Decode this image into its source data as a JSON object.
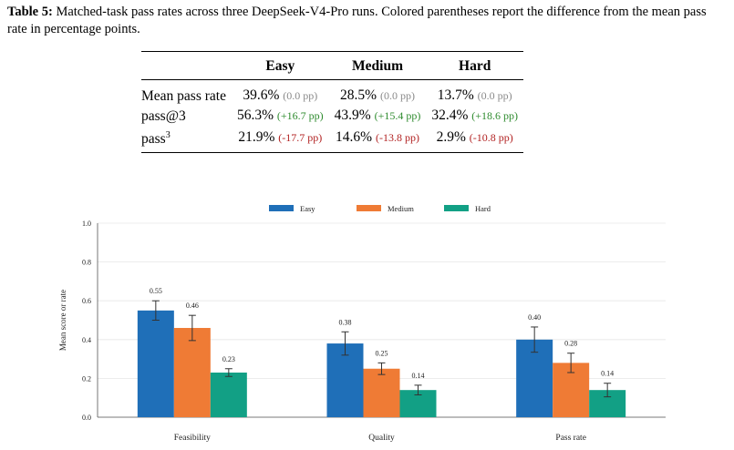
{
  "caption": {
    "label": "Table 5:",
    "text": "Matched-task pass rates across three DeepSeek-V4-Pro runs. Colored parentheses report the difference from the mean pass rate in percentage points."
  },
  "table": {
    "columns": [
      "Easy",
      "Medium",
      "Hard"
    ],
    "rows": [
      {
        "label": "Mean pass rate",
        "cells": [
          {
            "value": "39.6%",
            "delta": "(0.0 pp)",
            "kind": "zero"
          },
          {
            "value": "28.5%",
            "delta": "(0.0 pp)",
            "kind": "zero"
          },
          {
            "value": "13.7%",
            "delta": "(0.0 pp)",
            "kind": "zero"
          }
        ]
      },
      {
        "label": "pass@3",
        "cells": [
          {
            "value": "56.3%",
            "delta": "(+16.7 pp)",
            "kind": "pos"
          },
          {
            "value": "43.9%",
            "delta": "(+15.4 pp)",
            "kind": "pos"
          },
          {
            "value": "32.4%",
            "delta": "(+18.6 pp)",
            "kind": "pos"
          }
        ]
      },
      {
        "label": "pass",
        "label_sup": "3",
        "cells": [
          {
            "value": "21.9%",
            "delta": "(-17.7 pp)",
            "kind": "neg"
          },
          {
            "value": "14.6%",
            "delta": "(-13.8 pp)",
            "kind": "neg"
          },
          {
            "value": "2.9%",
            "delta": "(-10.8 pp)",
            "kind": "neg"
          }
        ]
      }
    ]
  },
  "chart_data": {
    "type": "bar",
    "categories": [
      "Feasibility",
      "Quality",
      "Pass rate"
    ],
    "series": [
      {
        "name": "Easy",
        "color": "#1f6fb8",
        "values": [
          0.55,
          0.38,
          0.4
        ],
        "labels": [
          "0.55",
          "0.38",
          "0.40"
        ],
        "err": [
          0.05,
          0.06,
          0.065
        ]
      },
      {
        "name": "Medium",
        "color": "#ef7b35",
        "values": [
          0.46,
          0.25,
          0.28
        ],
        "labels": [
          "0.46",
          "0.25",
          "0.28"
        ],
        "err": [
          0.065,
          0.03,
          0.05
        ]
      },
      {
        "name": "Hard",
        "color": "#12a085",
        "values": [
          0.23,
          0.14,
          0.14
        ],
        "labels": [
          "0.23",
          "0.14",
          "0.14"
        ],
        "err": [
          0.02,
          0.025,
          0.035
        ]
      }
    ],
    "ylabel": "Mean score or rate",
    "xlabel": "",
    "ylim": [
      0,
      1.0
    ],
    "yticks": [
      "0.0",
      "0.2",
      "0.4",
      "0.6",
      "0.8",
      "1.0"
    ],
    "grid": "y",
    "legend": "top-center",
    "colors": {
      "grid": "#e6e6e6",
      "axis": "#555555",
      "errorbar": "#333333"
    }
  }
}
